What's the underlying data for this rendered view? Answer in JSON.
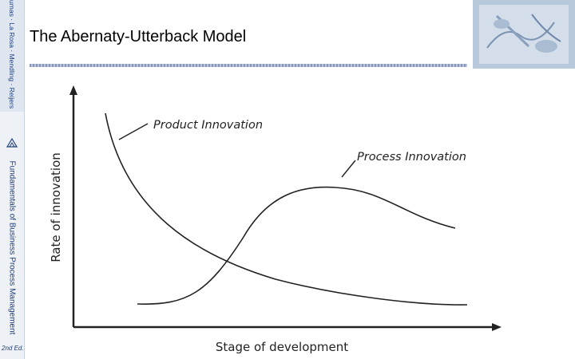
{
  "slide": {
    "title": "The Abernaty-Utterback Model"
  },
  "sidebar": {
    "series_label": "Dumas · La Rosa · Mendling · Reijers",
    "book_title": "Fundamentals of Business Process Management",
    "edition": "2nd Ed."
  },
  "diagram": {
    "y_axis_label": "Rate of innovation",
    "x_axis_label": "Stage of development",
    "curves": [
      {
        "name": "Product Innovation",
        "shape": "decreasing"
      },
      {
        "name": "Process Innovation",
        "shape": "rise-peak-decline"
      }
    ],
    "line_color": "#222222"
  }
}
